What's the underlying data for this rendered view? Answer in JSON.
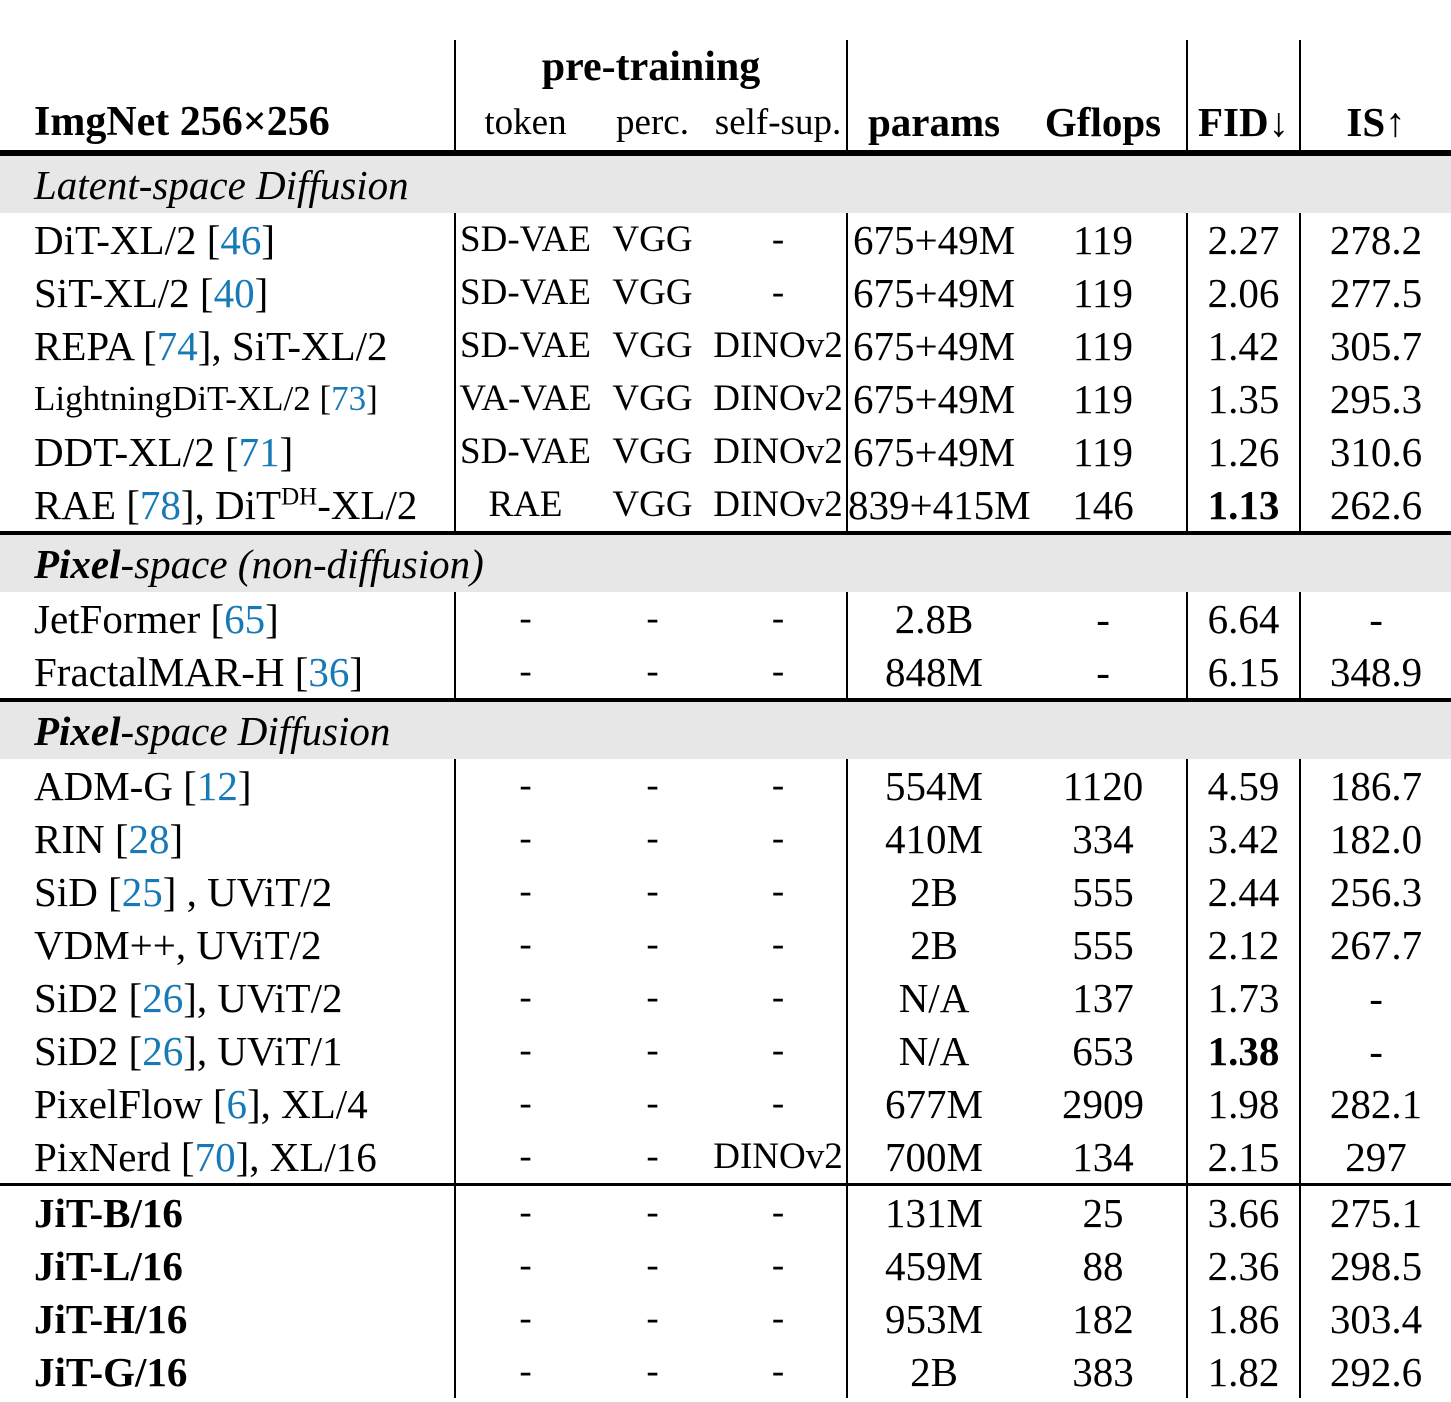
{
  "header": {
    "title": "ImgNet 256×256",
    "pretraining": "pre-training",
    "cols": {
      "token": "token",
      "perc": "perc.",
      "selfsup": "self-sup.",
      "params": "params",
      "gflops": "Gflops",
      "fid": "FID↓",
      "is": "IS↑"
    }
  },
  "colors": {
    "cite": "#1779b5",
    "section_bg": "#e7e7e7"
  },
  "sections": [
    {
      "label_bold": "",
      "label_rest": "Latent-space Diffusion",
      "rows": [
        {
          "pre": "DiT-XL/2 [",
          "cite": "46",
          "post": "]",
          "token": "SD-VAE",
          "perc": "VGG",
          "selfsup": "-",
          "params": "675+49M",
          "gflops": "119",
          "fid": "2.27",
          "is": "278.2"
        },
        {
          "pre": "SiT-XL/2 [",
          "cite": "40",
          "post": "]",
          "token": "SD-VAE",
          "perc": "VGG",
          "selfsup": "-",
          "params": "675+49M",
          "gflops": "119",
          "fid": "2.06",
          "is": "277.5"
        },
        {
          "pre": "REPA [",
          "cite": "74",
          "post": "], SiT-XL/2",
          "token": "SD-VAE",
          "perc": "VGG",
          "selfsup": "DINOv2",
          "params": "675+49M",
          "gflops": "119",
          "fid": "1.42",
          "is": "305.7"
        },
        {
          "pre": "LightningDiT-XL/2 [",
          "cite": "73",
          "post": "]",
          "name_small": true,
          "token": "VA-VAE",
          "perc": "VGG",
          "selfsup": "DINOv2",
          "params": "675+49M",
          "gflops": "119",
          "fid": "1.35",
          "is": "295.3"
        },
        {
          "pre": "DDT-XL/2 [",
          "cite": "71",
          "post": "]",
          "token": "SD-VAE",
          "perc": "VGG",
          "selfsup": "DINOv2",
          "params": "675+49M",
          "gflops": "119",
          "fid": "1.26",
          "is": "310.6"
        },
        {
          "pre": "RAE [",
          "cite": "78",
          "post": "], DiT",
          "sup": "DH",
          "post2": "-XL/2",
          "token": "RAE",
          "perc": "VGG",
          "selfsup": "DINOv2",
          "params": "839+415M",
          "gflops": "146",
          "fid": "1.13",
          "fid_bold": true,
          "is": "262.6"
        }
      ]
    },
    {
      "label_bold": "Pixel",
      "label_rest": "-space (non-diffusion)",
      "rows": [
        {
          "pre": "JetFormer [",
          "cite": "65",
          "post": "]",
          "token": "-",
          "perc": "-",
          "selfsup": "-",
          "params": "2.8B",
          "gflops": "-",
          "fid": "6.64",
          "is": "-"
        },
        {
          "pre": "FractalMAR-H [",
          "cite": "36",
          "post": "]",
          "token": "-",
          "perc": "-",
          "selfsup": "-",
          "params": "848M",
          "gflops": "-",
          "fid": "6.15",
          "is": "348.9"
        }
      ]
    },
    {
      "label_bold": "Pixel",
      "label_rest": "-space Diffusion",
      "rows": [
        {
          "pre": "ADM-G [",
          "cite": "12",
          "post": "]",
          "token": "-",
          "perc": "-",
          "selfsup": "-",
          "params": "554M",
          "gflops": "1120",
          "fid": "4.59",
          "is": "186.7"
        },
        {
          "pre": "RIN [",
          "cite": "28",
          "post": "]",
          "token": "-",
          "perc": "-",
          "selfsup": "-",
          "params": "410M",
          "gflops": "334",
          "fid": "3.42",
          "is": "182.0"
        },
        {
          "pre": "SiD [",
          "cite": "25",
          "post": "] , UViT/2",
          "token": "-",
          "perc": "-",
          "selfsup": "-",
          "params": "2B",
          "gflops": "555",
          "fid": "2.44",
          "is": "256.3"
        },
        {
          "pre": "VDM++, UViT/2",
          "token": "-",
          "perc": "-",
          "selfsup": "-",
          "params": "2B",
          "gflops": "555",
          "fid": "2.12",
          "is": "267.7"
        },
        {
          "pre": "SiD2 [",
          "cite": "26",
          "post": "], UViT/2",
          "token": "-",
          "perc": "-",
          "selfsup": "-",
          "params": "N/A",
          "gflops": "137",
          "fid": "1.73",
          "is": "-"
        },
        {
          "pre": "SiD2 [",
          "cite": "26",
          "post": "], UViT/1",
          "token": "-",
          "perc": "-",
          "selfsup": "-",
          "params": "N/A",
          "gflops": "653",
          "fid": "1.38",
          "fid_bold": true,
          "is": "-"
        },
        {
          "pre": "PixelFlow [",
          "cite": "6",
          "post": "], XL/4",
          "token": "-",
          "perc": "-",
          "selfsup": "-",
          "params": "677M",
          "gflops": "2909",
          "fid": "1.98",
          "is": "282.1"
        },
        {
          "pre": "PixNerd [",
          "cite": "70",
          "post": "], XL/16",
          "token": "-",
          "perc": "-",
          "selfsup": "DINOv2",
          "params": "700M",
          "gflops": "134",
          "fid": "2.15",
          "is": "297"
        }
      ]
    }
  ],
  "jit_rows": [
    {
      "pre": "JiT-B/16",
      "token": "-",
      "perc": "-",
      "selfsup": "-",
      "params": "131M",
      "gflops": "25",
      "fid": "3.66",
      "is": "275.1"
    },
    {
      "pre": "JiT-L/16",
      "token": "-",
      "perc": "-",
      "selfsup": "-",
      "params": "459M",
      "gflops": "88",
      "fid": "2.36",
      "is": "298.5"
    },
    {
      "pre": "JiT-H/16",
      "token": "-",
      "perc": "-",
      "selfsup": "-",
      "params": "953M",
      "gflops": "182",
      "fid": "1.86",
      "is": "303.4"
    },
    {
      "pre": "JiT-G/16",
      "token": "-",
      "perc": "-",
      "selfsup": "-",
      "params": "2B",
      "gflops": "383",
      "fid": "1.82",
      "is": "292.6"
    }
  ]
}
